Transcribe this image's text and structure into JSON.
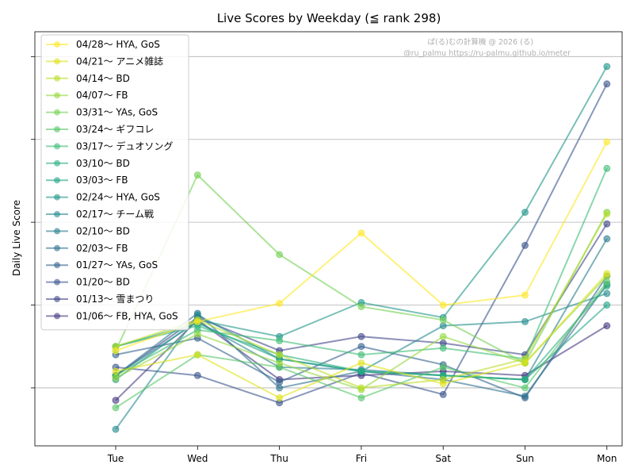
{
  "chart_data": {
    "type": "line",
    "title": "Live Scores by Weekday (≦ rank 298)",
    "xlabel": "",
    "ylabel": "Daily Live Score",
    "categories": [
      "Tue",
      "Wed",
      "Thu",
      "Fri",
      "Sat",
      "Sun",
      "Mon"
    ],
    "ylim": [
      -0.7,
      4.3
    ],
    "grid": "y",
    "legend_placement": "upper-left",
    "watermark": [
      "ぱ(る)むの計算機 @ 2026 (る)",
      "@ru_palmu  https://ru-palmu.github.io/meter"
    ],
    "series": [
      {
        "name": "04/28〜 HYA, GoS",
        "color": "#fde725",
        "values": [
          0.45,
          0.8,
          1.02,
          1.87,
          1.0,
          1.12,
          2.97
        ]
      },
      {
        "name": "04/21〜 アニメ雑誌",
        "color": "#dde318",
        "values": [
          0.2,
          0.4,
          -0.12,
          0.3,
          0.05,
          0.3,
          1.38
        ]
      },
      {
        "name": "04/14〜 BD",
        "color": "#bade28",
        "values": [
          0.5,
          0.82,
          0.4,
          0.0,
          0.1,
          0.35,
          2.1
        ]
      },
      {
        "name": "04/07〜 FB",
        "color": "#95d840",
        "values": [
          0.12,
          0.65,
          0.3,
          -0.02,
          0.62,
          0.3,
          1.35
        ]
      },
      {
        "name": "03/31〜 YAs, GoS",
        "color": "#75d054",
        "values": [
          0.45,
          2.57,
          1.61,
          0.98,
          0.82,
          0.3,
          2.12
        ]
      },
      {
        "name": "03/24〜 ギフコレ",
        "color": "#56c667",
        "values": [
          -0.24,
          0.4,
          0.25,
          -0.12,
          0.25,
          0.0,
          1.28
        ]
      },
      {
        "name": "03/17〜 デュオソング",
        "color": "#3dbc74",
        "values": [
          0.15,
          0.7,
          0.57,
          0.4,
          0.48,
          0.35,
          2.65
        ]
      },
      {
        "name": "03/10〜 BD",
        "color": "#29af7f",
        "values": [
          0.5,
          0.75,
          0.4,
          0.2,
          0.15,
          0.1,
          1.23
        ]
      },
      {
        "name": "03/03〜 FB",
        "color": "#20a386",
        "values": [
          0.5,
          0.78,
          0.35,
          0.2,
          0.15,
          0.1,
          1.0
        ]
      },
      {
        "name": "02/24〜 HYA, GoS",
        "color": "#1f968b",
        "values": [
          0.1,
          0.82,
          0.62,
          1.03,
          0.85,
          2.12,
          3.88
        ]
      },
      {
        "name": "02/17〜 チーム戦",
        "color": "#238a8d",
        "values": [
          -0.5,
          0.88,
          0.35,
          0.2,
          0.75,
          0.8,
          1.14
        ]
      },
      {
        "name": "02/10〜 BD",
        "color": "#287d8e",
        "values": [
          0.15,
          0.8,
          0.25,
          0.22,
          0.15,
          0.1,
          1.8
        ]
      },
      {
        "name": "02/03〜 FB",
        "color": "#2d718e",
        "values": [
          0.15,
          0.9,
          0.0,
          0.2,
          0.1,
          -0.1,
          1.25
        ]
      },
      {
        "name": "01/27〜 YAs, GoS",
        "color": "#33638d",
        "values": [
          0.4,
          0.6,
          0.07,
          0.5,
          0.28,
          -0.12,
          1.35
        ]
      },
      {
        "name": "01/20〜 BD",
        "color": "#3a548c",
        "values": [
          0.25,
          0.15,
          -0.18,
          0.18,
          -0.08,
          1.72,
          3.67
        ]
      },
      {
        "name": "01/13〜 雪まつり",
        "color": "#404688",
        "values": [
          0.15,
          0.85,
          0.45,
          0.62,
          0.54,
          0.4,
          1.98
        ]
      },
      {
        "name": "01/06〜 FB, HYA, GoS",
        "color": "#453781",
        "values": [
          -0.15,
          0.82,
          0.1,
          0.15,
          0.2,
          0.15,
          0.75
        ]
      }
    ]
  }
}
